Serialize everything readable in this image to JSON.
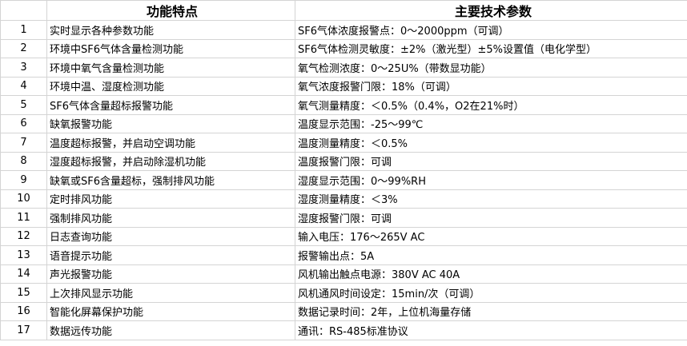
{
  "header": {
    "num": "",
    "feature": "功能特点",
    "param": "主要技术参数"
  },
  "rows": [
    {
      "num": "1",
      "feature": "实时显示各种参数功能",
      "param": "SF6气体浓度报警点：0～2000ppm（可调）"
    },
    {
      "num": "2",
      "feature": "环境中SF6气体含量检测功能",
      "param": "SF6气体检测灵敏度：±2%（激光型）±5%设置值（电化学型）"
    },
    {
      "num": "3",
      "feature": "环境中氧气含量检测功能",
      "param": "氧气检测浓度：0～25U%（带数显功能）"
    },
    {
      "num": "4",
      "feature": "环境中温、湿度检测功能",
      "param": "氧气浓度报警门限：18%（可调）"
    },
    {
      "num": "5",
      "feature": "SF6气体含量超标报警功能",
      "param": "氧气测量精度：＜0.5%（0.4%，O2在21%时）"
    },
    {
      "num": "6",
      "feature": "缺氧报警功能",
      "param": "温度显示范围：-25～99℃"
    },
    {
      "num": "7",
      "feature": "温度超标报警，并启动空调功能",
      "param": "温度测量精度：＜0.5%"
    },
    {
      "num": "8",
      "feature": "湿度超标报警，并启动除湿机功能",
      "param": "温度报警门限：可调"
    },
    {
      "num": "9",
      "feature": "缺氧或SF6含量超标，强制排风功能",
      "param": "湿度显示范围：0～99%RH"
    },
    {
      "num": "10",
      "feature": "定时排风功能",
      "param": "湿度测量精度：＜3%"
    },
    {
      "num": "11",
      "feature": "强制排风功能",
      "param": "湿度报警门限：可调"
    },
    {
      "num": "12",
      "feature": "日志查询功能",
      "param": "输入电压：176～265V AC"
    },
    {
      "num": "13",
      "feature": "语音提示功能",
      "param": "报警输出点：5A"
    },
    {
      "num": "14",
      "feature": "声光报警功能",
      "param": "风机输出触点电源：380V AC 40A"
    },
    {
      "num": "15",
      "feature": "上次排风显示功能",
      "param": "风机通风时间设定：15min/次（可调）"
    },
    {
      "num": "16",
      "feature": "智能化屏幕保护功能",
      "param": "数据记录时间：2年，上位机海量存储"
    },
    {
      "num": "17",
      "feature": "数据远传功能",
      "param": "通讯：RS-485标准协议"
    }
  ]
}
